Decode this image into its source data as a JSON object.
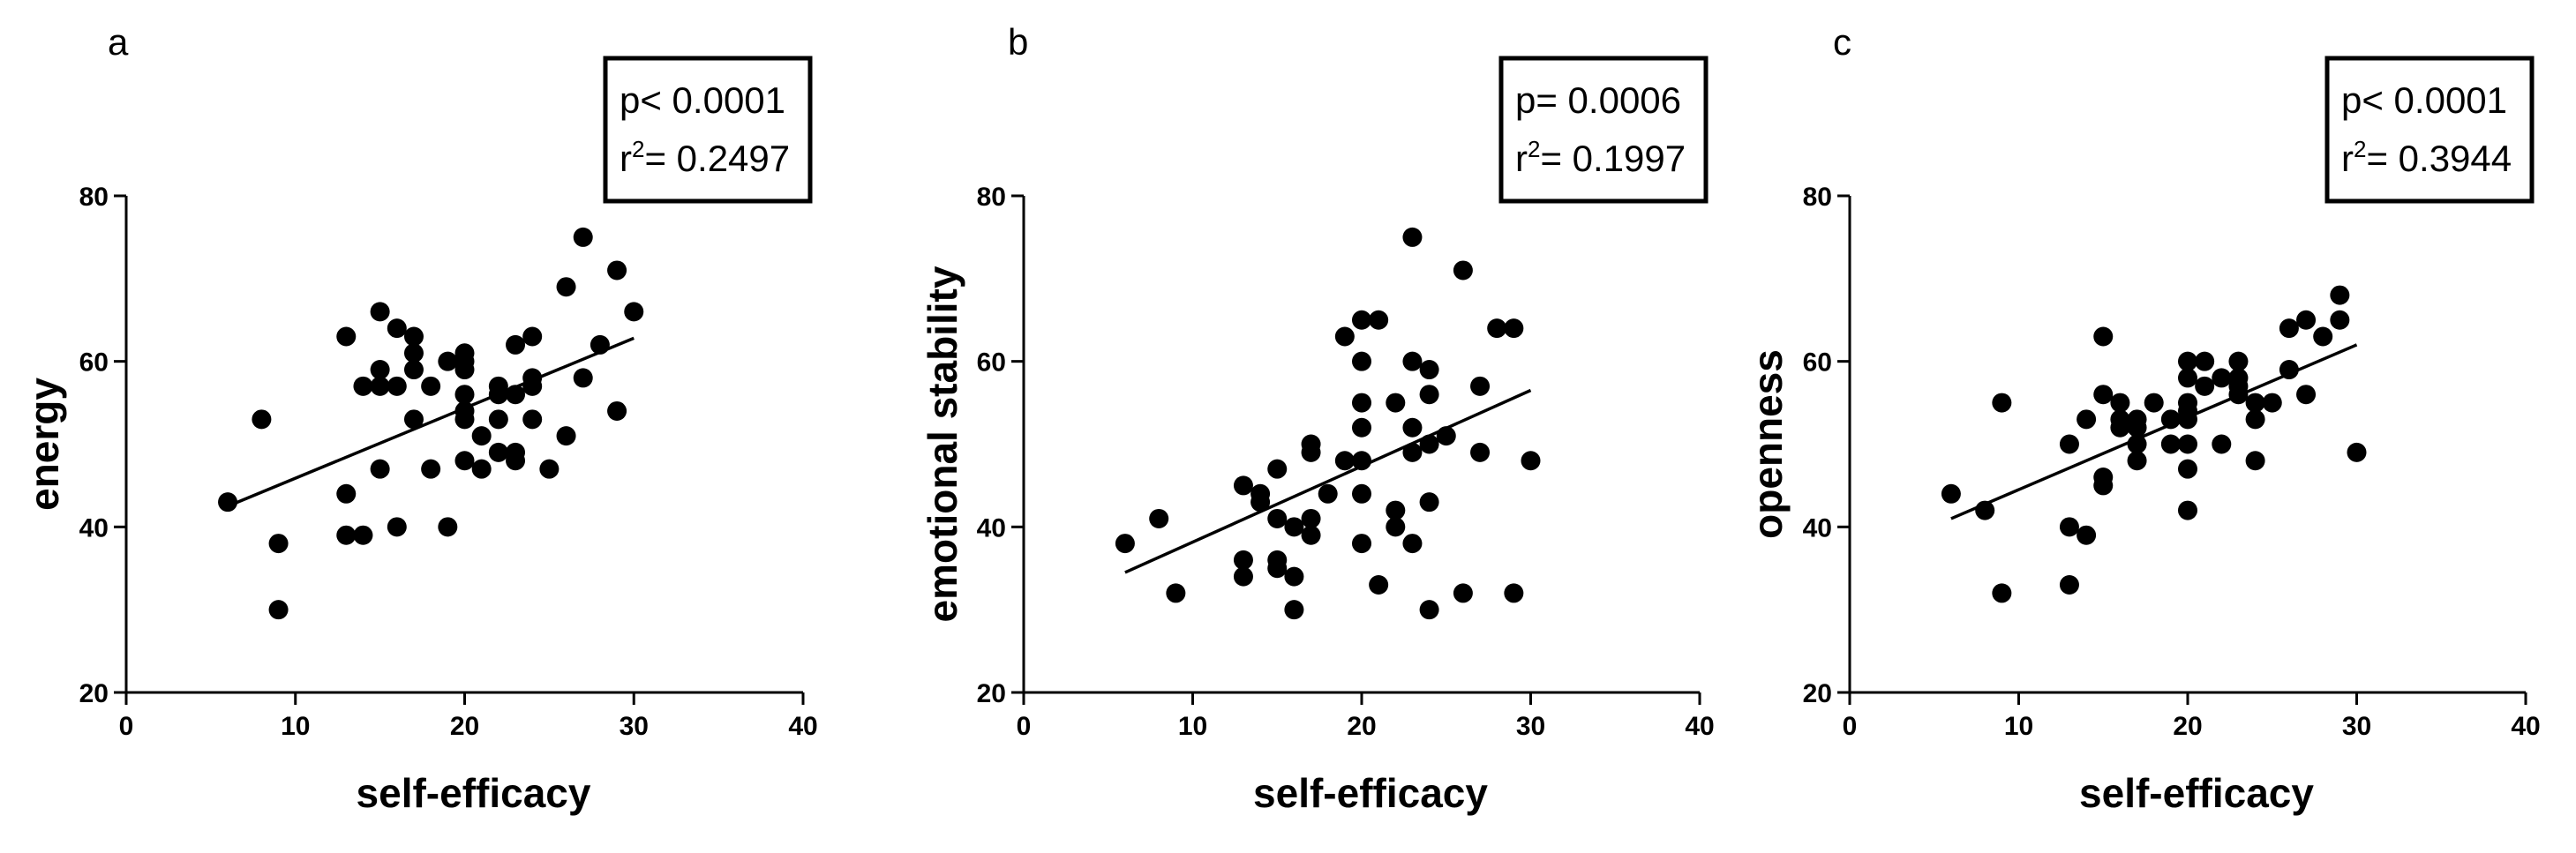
{
  "chart_data": [
    {
      "type": "scatter",
      "panel_letter": "a",
      "xlabel": "self-efficacy",
      "ylabel": "energy",
      "xlim": [
        0,
        40
      ],
      "ylim": [
        20,
        80
      ],
      "x_ticks": [
        "0",
        "10",
        "20",
        "30",
        "40"
      ],
      "y_ticks": [
        "20",
        "40",
        "60",
        "80"
      ],
      "grid": false,
      "stats": {
        "p_text": "p< 0.0001",
        "r2_prefix": "r",
        "r2_sup": "2",
        "r2_value": "= 0.2497"
      },
      "trendline": {
        "x": [
          6,
          30
        ],
        "y": [
          42.5,
          62.8
        ]
      },
      "points": [
        [
          6,
          43
        ],
        [
          8,
          53
        ],
        [
          9,
          38
        ],
        [
          9,
          30
        ],
        [
          13,
          63
        ],
        [
          13,
          44
        ],
        [
          13,
          39
        ],
        [
          14,
          57
        ],
        [
          14,
          39
        ],
        [
          15,
          66
        ],
        [
          15,
          59
        ],
        [
          15,
          57
        ],
        [
          15,
          47
        ],
        [
          16,
          64
        ],
        [
          16,
          57
        ],
        [
          16,
          40
        ],
        [
          17,
          63
        ],
        [
          17,
          61
        ],
        [
          17,
          59
        ],
        [
          17,
          53
        ],
        [
          18,
          57
        ],
        [
          18,
          47
        ],
        [
          19,
          60
        ],
        [
          19,
          40
        ],
        [
          20,
          61
        ],
        [
          20,
          60
        ],
        [
          20,
          59
        ],
        [
          20,
          56
        ],
        [
          20,
          54
        ],
        [
          20,
          53
        ],
        [
          20,
          48
        ],
        [
          21,
          51
        ],
        [
          21,
          47
        ],
        [
          22,
          57
        ],
        [
          22,
          56
        ],
        [
          22,
          53
        ],
        [
          22,
          49
        ],
        [
          23,
          62
        ],
        [
          23,
          56
        ],
        [
          23,
          49
        ],
        [
          23,
          48
        ],
        [
          24,
          63
        ],
        [
          24,
          58
        ],
        [
          24,
          57
        ],
        [
          24,
          53
        ],
        [
          25,
          47
        ],
        [
          26,
          69
        ],
        [
          26,
          51
        ],
        [
          27,
          75
        ],
        [
          27,
          58
        ],
        [
          28,
          62
        ],
        [
          29,
          71
        ],
        [
          29,
          54
        ],
        [
          30,
          66
        ]
      ]
    },
    {
      "type": "scatter",
      "panel_letter": "b",
      "xlabel": "self-efficacy",
      "ylabel": "emotional stability",
      "xlim": [
        0,
        40
      ],
      "ylim": [
        20,
        80
      ],
      "x_ticks": [
        "0",
        "10",
        "20",
        "30",
        "40"
      ],
      "y_ticks": [
        "20",
        "40",
        "60",
        "80"
      ],
      "grid": false,
      "stats": {
        "p_text": "p= 0.0006",
        "r2_prefix": "r",
        "r2_sup": "2",
        "r2_value": "= 0.1997"
      },
      "trendline": {
        "x": [
          6,
          30
        ],
        "y": [
          34.5,
          56.5
        ]
      },
      "points": [
        [
          6,
          38
        ],
        [
          8,
          41
        ],
        [
          9,
          32
        ],
        [
          13,
          45
        ],
        [
          13,
          36
        ],
        [
          13,
          34
        ],
        [
          14,
          44
        ],
        [
          14,
          43
        ],
        [
          15,
          47
        ],
        [
          15,
          41
        ],
        [
          15,
          36
        ],
        [
          15,
          35
        ],
        [
          16,
          40
        ],
        [
          16,
          34
        ],
        [
          16,
          30
        ],
        [
          17,
          50
        ],
        [
          17,
          49
        ],
        [
          17,
          41
        ],
        [
          17,
          39
        ],
        [
          18,
          44
        ],
        [
          19,
          63
        ],
        [
          19,
          48
        ],
        [
          20,
          65
        ],
        [
          20,
          60
        ],
        [
          20,
          55
        ],
        [
          20,
          52
        ],
        [
          20,
          48
        ],
        [
          20,
          44
        ],
        [
          20,
          38
        ],
        [
          21,
          65
        ],
        [
          21,
          33
        ],
        [
          22,
          55
        ],
        [
          22,
          42
        ],
        [
          22,
          40
        ],
        [
          23,
          75
        ],
        [
          23,
          60
        ],
        [
          23,
          52
        ],
        [
          23,
          49
        ],
        [
          23,
          38
        ],
        [
          24,
          59
        ],
        [
          24,
          56
        ],
        [
          24,
          50
        ],
        [
          24,
          43
        ],
        [
          24,
          30
        ],
        [
          25,
          51
        ],
        [
          26,
          71
        ],
        [
          26,
          32
        ],
        [
          27,
          57
        ],
        [
          27,
          49
        ],
        [
          28,
          64
        ],
        [
          29,
          64
        ],
        [
          29,
          32
        ],
        [
          30,
          48
        ]
      ]
    },
    {
      "type": "scatter",
      "panel_letter": "c",
      "xlabel": "self-efficacy",
      "ylabel": "openness",
      "xlim": [
        0,
        40
      ],
      "ylim": [
        20,
        80
      ],
      "x_ticks": [
        "0",
        "10",
        "20",
        "30",
        "40"
      ],
      "y_ticks": [
        "20",
        "40",
        "60",
        "80"
      ],
      "grid": false,
      "stats": {
        "p_text": "p< 0.0001",
        "r2_prefix": "r",
        "r2_sup": "2",
        "r2_value": "= 0.3944"
      },
      "trendline": {
        "x": [
          6,
          30
        ],
        "y": [
          41,
          62
        ]
      },
      "points": [
        [
          6,
          44
        ],
        [
          8,
          42
        ],
        [
          9,
          55
        ],
        [
          9,
          32
        ],
        [
          13,
          50
        ],
        [
          13,
          40
        ],
        [
          13,
          33
        ],
        [
          14,
          53
        ],
        [
          14,
          39
        ],
        [
          15,
          63
        ],
        [
          15,
          56
        ],
        [
          15,
          46
        ],
        [
          15,
          45
        ],
        [
          16,
          55
        ],
        [
          16,
          53
        ],
        [
          16,
          52
        ],
        [
          17,
          53
        ],
        [
          17,
          52
        ],
        [
          17,
          50
        ],
        [
          17,
          48
        ],
        [
          18,
          55
        ],
        [
          19,
          53
        ],
        [
          19,
          50
        ],
        [
          20,
          60
        ],
        [
          20,
          58
        ],
        [
          20,
          55
        ],
        [
          20,
          54
        ],
        [
          20,
          53
        ],
        [
          20,
          50
        ],
        [
          20,
          47
        ],
        [
          20,
          42
        ],
        [
          21,
          60
        ],
        [
          21,
          57
        ],
        [
          22,
          58
        ],
        [
          22,
          50
        ],
        [
          23,
          60
        ],
        [
          23,
          58
        ],
        [
          23,
          57
        ],
        [
          23,
          56
        ],
        [
          24,
          55
        ],
        [
          24,
          53
        ],
        [
          24,
          48
        ],
        [
          25,
          55
        ],
        [
          26,
          64
        ],
        [
          26,
          59
        ],
        [
          27,
          65
        ],
        [
          27,
          56
        ],
        [
          28,
          63
        ],
        [
          29,
          68
        ],
        [
          29,
          65
        ],
        [
          30,
          49
        ]
      ]
    }
  ]
}
